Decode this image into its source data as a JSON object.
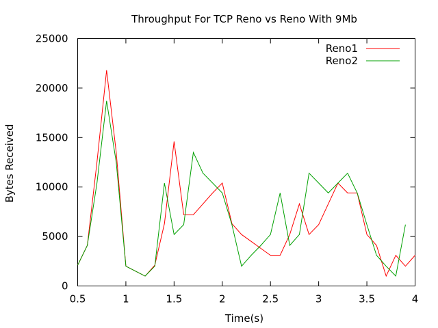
{
  "chart_data": {
    "type": "line",
    "title": "Throughput For TCP Reno vs Reno With 9Mb",
    "xlabel": "Time(s)",
    "ylabel": "Bytes Received",
    "xlim": [
      0.5,
      4
    ],
    "ylim": [
      0,
      25000
    ],
    "x_ticks": [
      0.5,
      1,
      1.5,
      2,
      2.5,
      3,
      3.5,
      4
    ],
    "x_tick_labels": [
      "0.5",
      "1",
      "1.5",
      "2",
      "2.5",
      "3",
      "3.5",
      "4"
    ],
    "y_ticks": [
      0,
      5000,
      10000,
      15000,
      20000,
      25000
    ],
    "y_tick_labels": [
      "0",
      "5000",
      "10000",
      "15000",
      "20000",
      "25000"
    ],
    "grid": false,
    "legend_position": "top-right",
    "series": [
      {
        "name": "Reno1",
        "color": "#ff0000",
        "x": [
          0.5,
          0.6,
          0.7,
          0.8,
          0.9,
          1.0,
          1.1,
          1.2,
          1.3,
          1.4,
          1.5,
          1.6,
          1.7,
          1.8,
          1.9,
          2.0,
          2.1,
          2.2,
          2.3,
          2.4,
          2.5,
          2.6,
          2.7,
          2.8,
          2.9,
          3.0,
          3.1,
          3.2,
          3.3,
          3.4,
          3.5,
          3.6,
          3.7,
          3.8,
          3.9,
          4.0
        ],
        "y": [
          2100,
          4100,
          12500,
          21800,
          13500,
          2000,
          1500,
          1000,
          2100,
          6300,
          14600,
          7200,
          7200,
          8300,
          9400,
          10400,
          6300,
          5200,
          4500,
          3800,
          3100,
          3100,
          5200,
          8300,
          5200,
          6200,
          8300,
          10400,
          9400,
          9400,
          5200,
          4100,
          1000,
          3100,
          2000,
          3100
        ]
      },
      {
        "name": "Reno2",
        "color": "#00a000",
        "x": [
          0.5,
          0.6,
          0.7,
          0.8,
          0.9,
          1.0,
          1.1,
          1.2,
          1.3,
          1.4,
          1.5,
          1.6,
          1.7,
          1.8,
          1.9,
          2.0,
          2.1,
          2.2,
          2.3,
          2.4,
          2.5,
          2.6,
          2.7,
          2.8,
          2.9,
          3.0,
          3.1,
          3.2,
          3.3,
          3.4,
          3.5,
          3.6,
          3.7,
          3.8,
          3.9
        ],
        "y": [
          2100,
          4100,
          10400,
          18700,
          12500,
          2000,
          1500,
          1000,
          2000,
          10400,
          5200,
          6200,
          13500,
          11400,
          10400,
          9400,
          6200,
          2000,
          3100,
          4100,
          5200,
          9400,
          4100,
          5200,
          11400,
          10400,
          9400,
          10400,
          11400,
          9400,
          6200,
          3100,
          2000,
          1000,
          6200
        ]
      }
    ]
  }
}
